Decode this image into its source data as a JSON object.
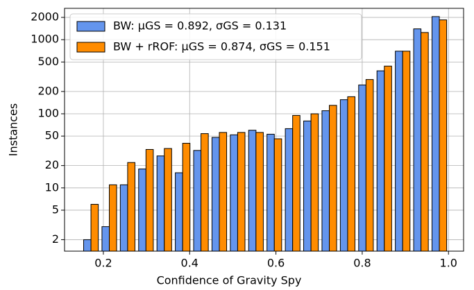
{
  "chart_data": {
    "type": "histogram",
    "xlabel": "Confidence of Gravity Spy",
    "ylabel": "Instances",
    "bins": [
      0.15,
      0.1925,
      0.235,
      0.2775,
      0.32,
      0.3625,
      0.405,
      0.4475,
      0.49,
      0.5325,
      0.575,
      0.6175,
      0.66,
      0.7025,
      0.745,
      0.7875,
      0.83,
      0.8725,
      0.915,
      0.9575,
      1.0
    ],
    "series": [
      {
        "name": "BW: μGS = 0.892, σGS = 0.131",
        "color": "#6495ed",
        "values": [
          2,
          3,
          11,
          18,
          27,
          16,
          32,
          48,
          52,
          60,
          53,
          63,
          80,
          110,
          155,
          245,
          380,
          700,
          1400,
          2050
        ]
      },
      {
        "name": "BW + rROF: μGS = 0.874, σGS = 0.151",
        "color": "#ff8c00",
        "values": [
          6,
          11,
          22,
          33,
          34,
          40,
          54,
          56,
          56,
          56,
          46,
          95,
          100,
          130,
          170,
          290,
          440,
          700,
          1250,
          1850
        ]
      }
    ],
    "xlim": [
      0.11,
      1.035
    ],
    "xticks": [
      0.2,
      0.4,
      0.6,
      0.8,
      {
        "value": 1.0,
        "label": "1.0"
      }
    ],
    "ylim": [
      1.4,
      2650
    ],
    "yticks": [
      2,
      5,
      10,
      20,
      50,
      100,
      200,
      500,
      1000,
      2000
    ],
    "ylog": true,
    "grid": true,
    "legend": "upper left"
  }
}
